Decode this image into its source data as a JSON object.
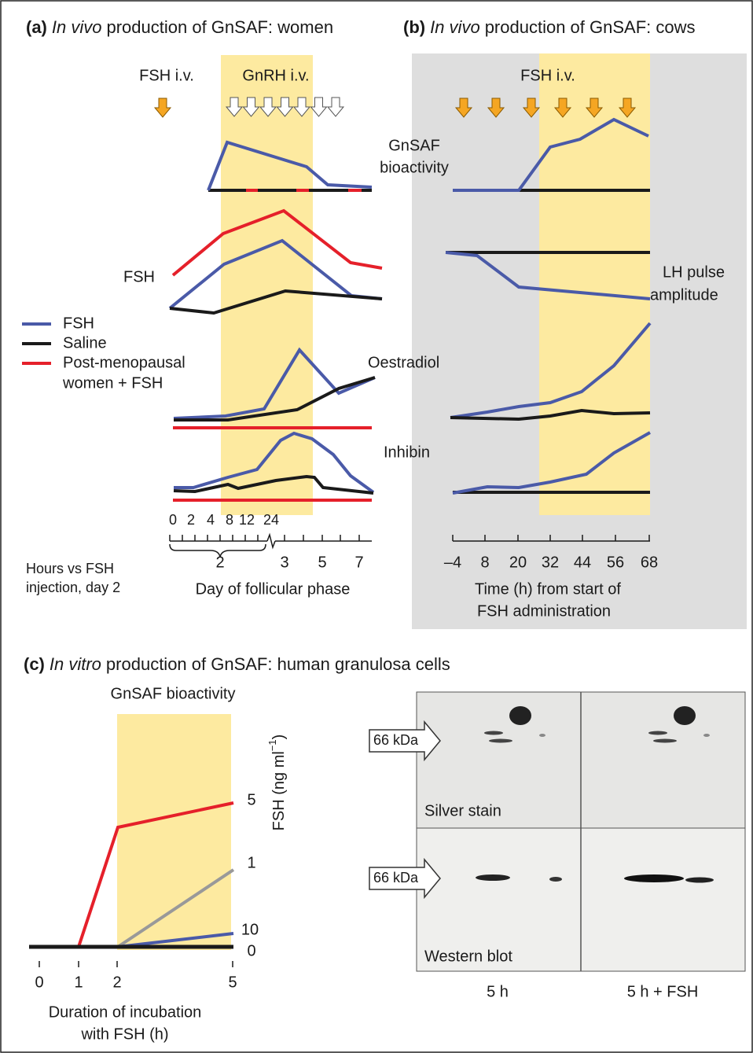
{
  "panel_a": {
    "label": "(a)",
    "title_italic": "In vivo",
    "title_rest": "production of GnSAF: women",
    "fsh_iv": "FSH i.v.",
    "gnrh_iv": "GnRH i.v.",
    "fsh_label": "FSH",
    "legend": [
      "FSH",
      "Saline",
      "Post-menopausal",
      "women + FSH"
    ],
    "oestradiol": "Oestradiol",
    "inhibin": "Inhibin",
    "hour_ticks": [
      "0",
      "2",
      "4",
      "8",
      "12",
      "24"
    ],
    "day_ticks": [
      "2",
      "3",
      "5",
      "7"
    ],
    "hours_note": [
      "Hours vs FSH",
      "injection, day 2"
    ],
    "x_label": "Day of follicular phase"
  },
  "gnsaf_label": [
    "GnSAF",
    "bioactivity"
  ],
  "panel_b": {
    "label": "(b)",
    "title_italic": "In vivo",
    "title_rest": "production of GnSAF: cows",
    "fsh_iv": "FSH i.v.",
    "lh_label": [
      "LH pulse",
      "amplitude"
    ],
    "x_ticks": [
      "–4",
      "8",
      "20",
      "32",
      "44",
      "56",
      "68"
    ],
    "x_label": [
      "Time (h) from start of",
      "FSH administration"
    ]
  },
  "panel_c": {
    "label": "(c)",
    "title_italic": "In vitro",
    "title_rest": "production of GnSAF: human granulosa cells",
    "chart_title": "GnSAF bioactivity",
    "line_labels": [
      "5",
      "1",
      "10",
      "0"
    ],
    "axis_label": [
      "FSH (ng ml",
      "−1",
      ")"
    ],
    "x_ticks": [
      "0",
      "1",
      "2",
      "5"
    ],
    "x_label": [
      "Duration of incubation",
      "with FSH (h)"
    ],
    "gel": {
      "marker": [
        "66 kDa",
        "66 kDa"
      ],
      "stains": [
        "Silver stain",
        "Western blot"
      ],
      "lanes": [
        "5 h",
        "5 h + FSH"
      ]
    }
  }
}
